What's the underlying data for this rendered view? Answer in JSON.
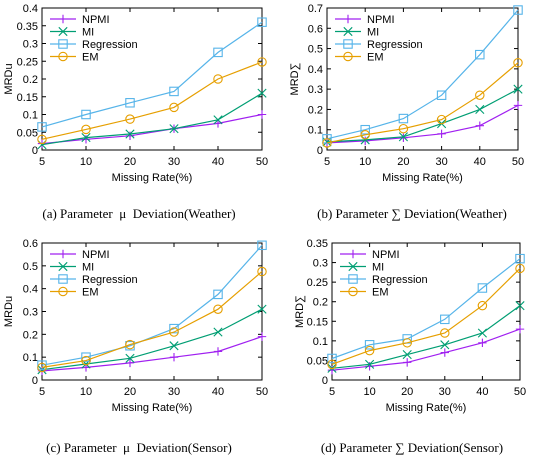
{
  "colors": {
    "NPMI": "#a020f0",
    "MI": "#009e73",
    "Regression": "#56b4e9",
    "EM": "#e69f00"
  },
  "chart_data": [
    {
      "type": "line",
      "caption": "(a) Parameter  μ  Deviation(Weather)",
      "xlabel": "Missing Rate(%)",
      "ylabel": "MRDu",
      "x": [
        5,
        10,
        20,
        30,
        40,
        50
      ],
      "x_ticks": [
        "5",
        "10",
        "20",
        "30",
        "40",
        "50"
      ],
      "ylim": [
        0,
        0.4
      ],
      "y_ticks": [
        "0",
        "0.05",
        "0.1",
        "0.15",
        "0.2",
        "0.25",
        "0.3",
        "0.35",
        "0.4"
      ],
      "legend_position": "top-left",
      "series": [
        {
          "name": "NPMI",
          "marker": "plus",
          "values": [
            0.018,
            0.03,
            0.04,
            0.06,
            0.075,
            0.1
          ]
        },
        {
          "name": "MI",
          "marker": "cross",
          "values": [
            0.015,
            0.035,
            0.045,
            0.06,
            0.085,
            0.16
          ]
        },
        {
          "name": "Regression",
          "marker": "square",
          "values": [
            0.065,
            0.1,
            0.133,
            0.165,
            0.275,
            0.36
          ]
        },
        {
          "name": "EM",
          "marker": "circle",
          "values": [
            0.03,
            0.058,
            0.087,
            0.12,
            0.2,
            0.248
          ]
        }
      ]
    },
    {
      "type": "line",
      "caption": "(b) Parameter ∑ Deviation(Weather)",
      "xlabel": "Missing Rate(%)",
      "ylabel": "MRD∑",
      "x": [
        5,
        10,
        20,
        30,
        40,
        50
      ],
      "x_ticks": [
        "5",
        "10",
        "20",
        "30",
        "40",
        "50"
      ],
      "ylim": [
        0,
        0.7
      ],
      "y_ticks": [
        "0",
        "0.1",
        "0.2",
        "0.3",
        "0.4",
        "0.5",
        "0.6",
        "0.7"
      ],
      "legend_position": "top-left",
      "series": [
        {
          "name": "NPMI",
          "marker": "plus",
          "values": [
            0.035,
            0.045,
            0.06,
            0.08,
            0.12,
            0.22
          ]
        },
        {
          "name": "MI",
          "marker": "cross",
          "values": [
            0.04,
            0.05,
            0.065,
            0.13,
            0.2,
            0.3
          ]
        },
        {
          "name": "Regression",
          "marker": "square",
          "values": [
            0.055,
            0.1,
            0.155,
            0.27,
            0.47,
            0.69
          ]
        },
        {
          "name": "EM",
          "marker": "circle",
          "values": [
            0.035,
            0.075,
            0.105,
            0.15,
            0.27,
            0.43
          ]
        }
      ]
    },
    {
      "type": "line",
      "caption": "(c) Parameter  μ  Deviation(Sensor)",
      "xlabel": "Missing Rate(%)",
      "ylabel": "MRDu",
      "x": [
        5,
        10,
        20,
        30,
        40,
        50
      ],
      "x_ticks": [
        "5",
        "10",
        "20",
        "30",
        "40",
        "50"
      ],
      "ylim": [
        0,
        0.6
      ],
      "y_ticks": [
        "0",
        "0.1",
        "0.2",
        "0.3",
        "0.4",
        "0.5",
        "0.6"
      ],
      "legend_position": "top-left",
      "series": [
        {
          "name": "NPMI",
          "marker": "plus",
          "values": [
            0.04,
            0.055,
            0.075,
            0.1,
            0.125,
            0.19
          ]
        },
        {
          "name": "MI",
          "marker": "cross",
          "values": [
            0.045,
            0.07,
            0.095,
            0.15,
            0.21,
            0.31
          ]
        },
        {
          "name": "Regression",
          "marker": "square",
          "values": [
            0.065,
            0.1,
            0.15,
            0.225,
            0.375,
            0.59
          ]
        },
        {
          "name": "EM",
          "marker": "circle",
          "values": [
            0.055,
            0.085,
            0.155,
            0.21,
            0.31,
            0.475
          ]
        }
      ]
    },
    {
      "type": "line",
      "caption": "(d) Parameter ∑ Deviation(Sensor)",
      "xlabel": "Missing Rate(%)",
      "ylabel": "MRD∑",
      "x": [
        5,
        10,
        20,
        30,
        40,
        50
      ],
      "x_ticks": [
        "5",
        "10",
        "20",
        "30",
        "40",
        "50"
      ],
      "ylim": [
        0,
        0.35
      ],
      "y_ticks": [
        "0",
        "0.05",
        "0.1",
        "0.15",
        "0.2",
        "0.25",
        "0.3",
        "0.35"
      ],
      "legend_position": "top-left",
      "series": [
        {
          "name": "NPMI",
          "marker": "plus",
          "values": [
            0.025,
            0.035,
            0.045,
            0.07,
            0.095,
            0.13
          ]
        },
        {
          "name": "MI",
          "marker": "cross",
          "values": [
            0.03,
            0.04,
            0.065,
            0.09,
            0.12,
            0.19
          ]
        },
        {
          "name": "Regression",
          "marker": "square",
          "values": [
            0.055,
            0.09,
            0.105,
            0.155,
            0.235,
            0.31
          ]
        },
        {
          "name": "EM",
          "marker": "circle",
          "values": [
            0.04,
            0.075,
            0.095,
            0.12,
            0.19,
            0.285
          ]
        }
      ]
    }
  ]
}
